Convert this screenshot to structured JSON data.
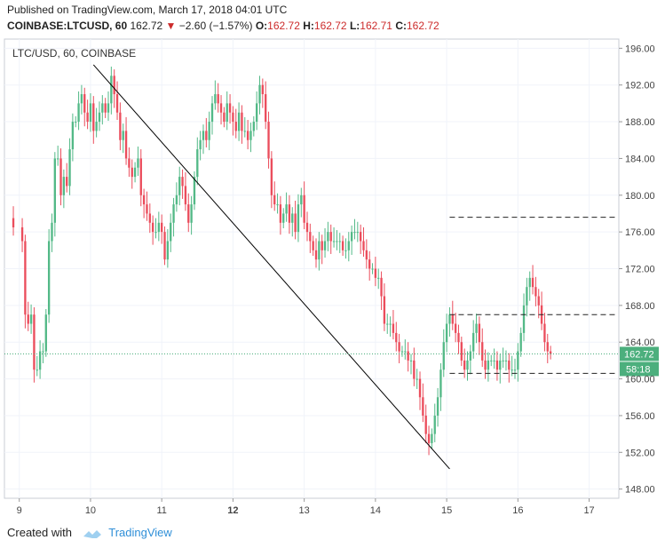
{
  "header": {
    "published": "Published on TradingView.com, March 17, 2018 04:01 UTC",
    "symbol": "COINBASE:LTCUSD, 60",
    "last": "162.72",
    "arrow": "▼",
    "change": "−2.60 (−1.57%)",
    "o_label": "O:",
    "o_value": "162.72",
    "h_label": "H:",
    "h_value": "162.72",
    "l_label": "L:",
    "l_value": "162.71",
    "c_label": "C:",
    "c_value": "162.72"
  },
  "footer": {
    "created": "Created with",
    "brand": "TradingView"
  },
  "colors": {
    "up": "#53b987",
    "down": "#eb4d5c",
    "last_label": "#4caf7d",
    "grid": "#f0f3fa",
    "trend": "#000000"
  },
  "chart_data": {
    "type": "candlestick",
    "pane_label": "LTC/USD, 60, COINBASE",
    "ylim": [
      147,
      197
    ],
    "y_ticks": [
      "148.00",
      "152.00",
      "156.00",
      "160.00",
      "164.00",
      "168.00",
      "172.00",
      "176.00",
      "180.00",
      "184.00",
      "188.00",
      "192.00",
      "196.00"
    ],
    "x_ticks": [
      {
        "label": "9",
        "t": 0.0
      },
      {
        "label": "10",
        "t": 24
      },
      {
        "label": "11",
        "t": 48
      },
      {
        "label": "12",
        "t": 72,
        "bold": true
      },
      {
        "label": "13",
        "t": 96
      },
      {
        "label": "14",
        "t": 120
      },
      {
        "label": "15",
        "t": 144
      },
      {
        "label": "16",
        "t": 168
      },
      {
        "label": "17",
        "t": 192
      }
    ],
    "x_range_hours": [
      -5,
      202
    ],
    "last_price": "162.72",
    "countdown": "58:18",
    "close_path": [
      [
        -5,
        177.5
      ],
      [
        -2,
        176.5
      ],
      [
        1,
        175
      ],
      [
        2,
        167
      ],
      [
        3,
        166
      ],
      [
        4,
        167
      ],
      [
        5,
        161
      ],
      [
        6,
        161
      ],
      [
        7,
        163
      ],
      [
        8,
        163
      ],
      [
        9,
        167
      ],
      [
        10,
        175
      ],
      [
        11,
        177
      ],
      [
        12,
        184
      ],
      [
        13,
        184
      ],
      [
        14,
        180
      ],
      [
        15,
        182
      ],
      [
        16,
        181
      ],
      [
        17,
        185
      ],
      [
        18,
        188
      ],
      [
        19,
        188
      ],
      [
        20,
        190
      ],
      [
        21,
        191
      ],
      [
        22,
        189
      ],
      [
        23,
        188
      ],
      [
        24,
        190
      ],
      [
        25,
        187
      ],
      [
        26,
        188
      ],
      [
        27,
        189
      ],
      [
        28,
        190
      ],
      [
        29,
        189
      ],
      [
        30,
        190
      ],
      [
        31,
        193
      ],
      [
        32,
        191
      ],
      [
        33,
        189
      ],
      [
        34,
        186
      ],
      [
        35,
        187
      ],
      [
        36,
        184
      ],
      [
        37,
        183
      ],
      [
        38,
        182
      ],
      [
        39,
        183
      ],
      [
        40,
        184
      ],
      [
        41,
        180
      ],
      [
        42,
        179
      ],
      [
        43,
        178
      ],
      [
        44,
        177
      ],
      [
        45,
        176
      ],
      [
        46,
        176
      ],
      [
        47,
        177
      ],
      [
        48,
        176
      ],
      [
        49,
        173
      ],
      [
        50,
        175
      ],
      [
        51,
        177
      ],
      [
        52,
        179
      ],
      [
        53,
        180
      ],
      [
        54,
        182
      ],
      [
        55,
        181
      ],
      [
        56,
        179
      ],
      [
        57,
        177
      ],
      [
        58,
        179
      ],
      [
        59,
        182
      ],
      [
        60,
        185
      ],
      [
        61,
        186
      ],
      [
        62,
        187
      ],
      [
        63,
        186
      ],
      [
        64,
        188
      ],
      [
        65,
        190
      ],
      [
        66,
        191
      ],
      [
        67,
        190
      ],
      [
        68,
        189
      ],
      [
        69,
        188
      ],
      [
        70,
        190
      ],
      [
        71,
        189
      ],
      [
        72,
        188
      ],
      [
        73,
        187
      ],
      [
        74,
        189
      ],
      [
        75,
        187
      ],
      [
        76,
        187
      ],
      [
        77,
        186
      ],
      [
        78,
        187
      ],
      [
        79,
        188
      ],
      [
        80,
        190
      ],
      [
        81,
        192
      ],
      [
        82,
        191
      ],
      [
        83,
        188
      ],
      [
        84,
        184
      ],
      [
        85,
        180
      ],
      [
        86,
        179
      ],
      [
        87,
        179
      ],
      [
        88,
        177
      ],
      [
        89,
        178
      ],
      [
        90,
        179
      ],
      [
        91,
        177
      ],
      [
        92,
        178
      ],
      [
        93,
        176
      ],
      [
        94,
        179
      ],
      [
        95,
        180
      ],
      [
        96,
        177
      ],
      [
        97,
        176
      ],
      [
        98,
        175
      ],
      [
        99,
        174
      ],
      [
        100,
        173
      ],
      [
        101,
        175
      ],
      [
        102,
        174
      ],
      [
        103,
        175
      ],
      [
        104,
        176
      ],
      [
        105,
        175
      ],
      [
        106,
        175
      ],
      [
        107,
        175
      ],
      [
        108,
        175
      ],
      [
        109,
        174
      ],
      [
        110,
        174
      ],
      [
        111,
        175
      ],
      [
        112,
        176
      ],
      [
        113,
        176
      ],
      [
        114,
        176
      ],
      [
        115,
        175
      ],
      [
        116,
        174
      ],
      [
        117,
        173
      ],
      [
        118,
        172
      ],
      [
        119,
        172
      ],
      [
        120,
        171
      ],
      [
        121,
        171
      ],
      [
        122,
        169
      ],
      [
        123,
        166
      ],
      [
        124,
        166
      ],
      [
        125,
        166
      ],
      [
        126,
        165
      ],
      [
        127,
        164
      ],
      [
        128,
        163
      ],
      [
        129,
        163
      ],
      [
        130,
        163
      ],
      [
        131,
        162
      ],
      [
        132,
        162
      ],
      [
        133,
        160
      ],
      [
        134,
        160
      ],
      [
        135,
        158
      ],
      [
        136,
        156
      ],
      [
        137,
        154
      ],
      [
        138,
        153
      ],
      [
        139,
        154
      ],
      [
        140,
        156
      ],
      [
        141,
        158
      ],
      [
        142,
        161
      ],
      [
        143,
        164
      ],
      [
        144,
        166
      ],
      [
        145,
        167
      ],
      [
        146,
        166
      ],
      [
        147,
        165
      ],
      [
        148,
        164
      ],
      [
        149,
        162
      ],
      [
        150,
        161
      ],
      [
        151,
        162
      ],
      [
        152,
        163
      ],
      [
        153,
        165
      ],
      [
        154,
        166
      ],
      [
        155,
        164
      ],
      [
        156,
        162
      ],
      [
        157,
        161
      ],
      [
        158,
        162
      ],
      [
        159,
        162
      ],
      [
        160,
        162
      ],
      [
        161,
        161
      ],
      [
        162,
        162
      ],
      [
        163,
        162
      ],
      [
        164,
        162
      ],
      [
        165,
        161
      ],
      [
        166,
        161
      ],
      [
        167,
        161
      ],
      [
        168,
        163
      ],
      [
        169,
        165
      ],
      [
        170,
        168
      ],
      [
        171,
        170
      ],
      [
        172,
        171
      ],
      [
        173,
        170
      ],
      [
        174,
        169
      ],
      [
        175,
        168
      ],
      [
        176,
        166
      ],
      [
        177,
        164
      ],
      [
        178,
        163
      ],
      [
        179,
        162.72
      ]
    ],
    "trendline": [
      [
        25,
        194.2
      ],
      [
        145,
        150.2
      ]
    ],
    "dashed_levels": [
      {
        "price": 177.6,
        "from": 145,
        "to": 202
      },
      {
        "price": 167.0,
        "from": 145,
        "to": 202
      },
      {
        "price": 160.6,
        "from": 145,
        "to": 202
      }
    ]
  }
}
